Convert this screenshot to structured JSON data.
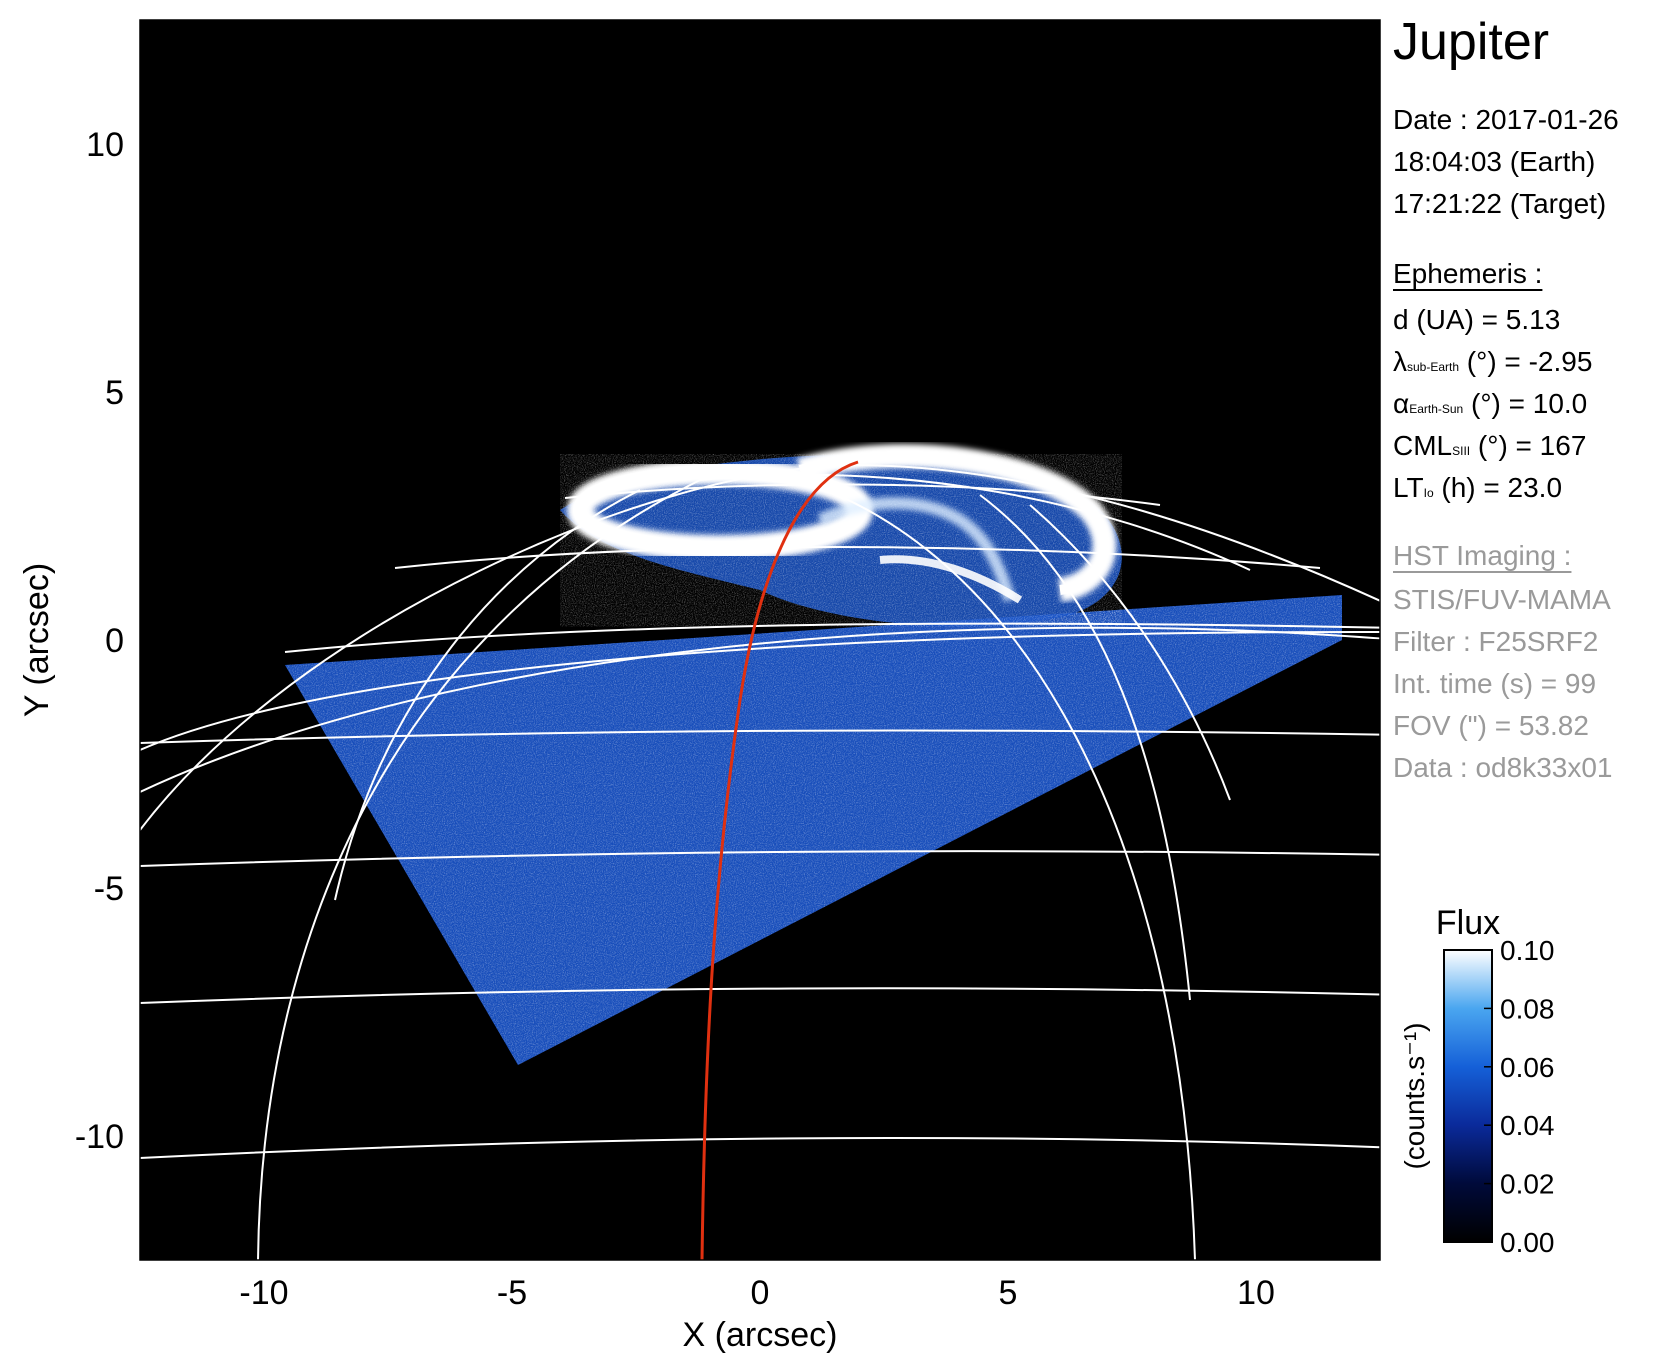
{
  "chart_data": {
    "type": "heatmap",
    "xlabel": "X (arcsec)",
    "ylabel": "Y (arcsec)",
    "xlim": [
      -12.5,
      12.5
    ],
    "ylim": [
      -12.5,
      12.5
    ],
    "xticks": [
      "-10",
      "-5",
      "0",
      "5",
      "10"
    ],
    "yticks": [
      "-10",
      "-5",
      "0",
      "5",
      "10"
    ],
    "colorbar": {
      "title": "Flux",
      "label": "(counts.s⁻¹)",
      "ticks": [
        "0.00",
        "0.02",
        "0.04",
        "0.06",
        "0.08",
        "0.10"
      ],
      "range": [
        0,
        0.1
      ]
    }
  },
  "info": {
    "title": "Jupiter",
    "date": "Date : 2017-01-26",
    "time_earth": "18:04:03 (Earth)",
    "time_target": "17:21:22 (Target)",
    "ephemeris_header": "Ephemeris :",
    "distance": "d (UA)    = 5.13",
    "lambda_sym": "λ",
    "lambda_sub": "sub-Earth",
    "lambda_val": " (°) = -2.95",
    "alpha_sym": "α",
    "alpha_sub": "Earth-Sun",
    "alpha_val": " (°) = 10.0",
    "cml_sym": "CML",
    "cml_sub": "SIII",
    "cml_val": " (°) = 167",
    "lt_sym": "LT",
    "lt_sub": "Io",
    "lt_val": " (h) = 23.0",
    "hst_header": "HST Imaging :",
    "instrument": "STIS/FUV-MAMA",
    "filter": "Filter : F25SRF2",
    "int_time": "Int. time (s) = 99",
    "fov": "FOV (\") = 53.82",
    "dataset": "Data : od8k33x01"
  },
  "colors": {
    "background": "#000000",
    "grid": "#ffffff",
    "footprint": "#e03010",
    "cmap_low": "#000000",
    "cmap_mid": "#1560d8",
    "cmap_high": "#ffffff"
  }
}
